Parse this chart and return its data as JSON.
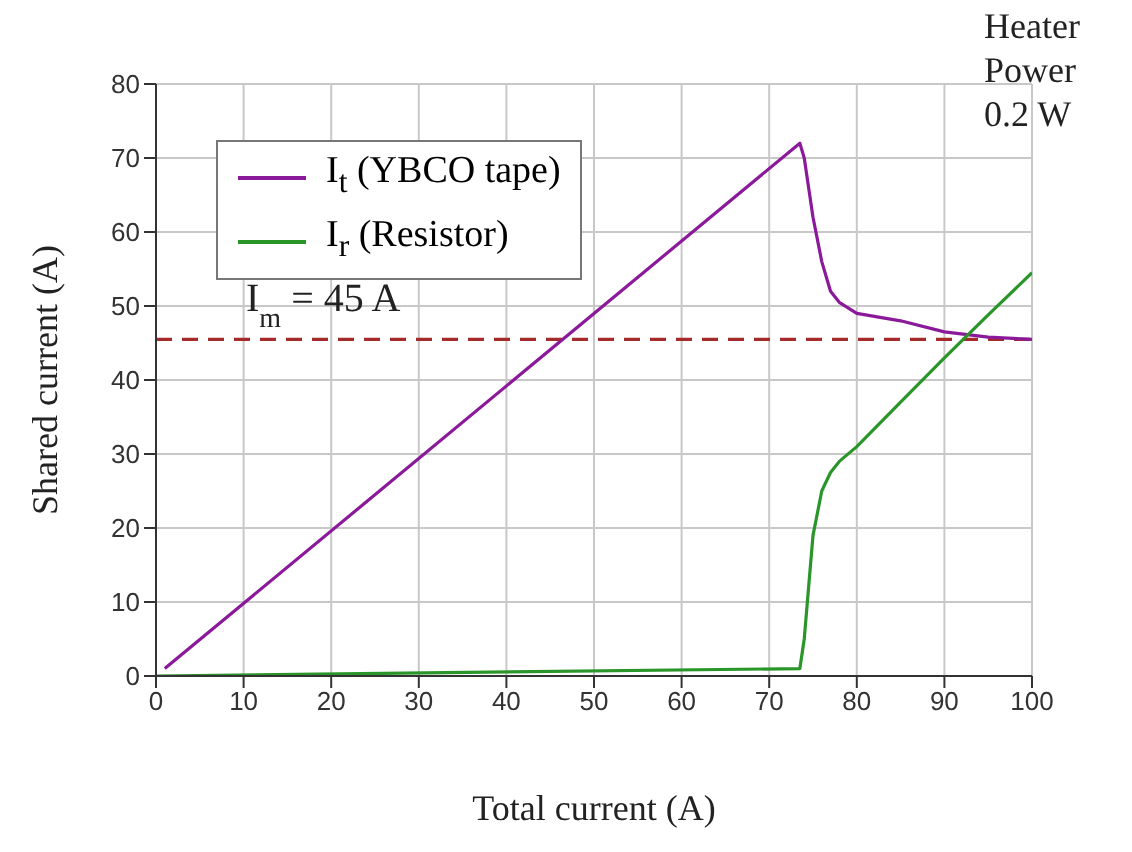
{
  "chart_data": {
    "type": "line",
    "xlabel": "Total current (A)",
    "ylabel": "Shared current (A)",
    "xlim": [
      0,
      100
    ],
    "xticks": [
      0,
      10,
      20,
      30,
      40,
      50,
      60,
      70,
      80,
      90,
      100
    ],
    "ylim": [
      0,
      80
    ],
    "yticks": [
      0,
      10,
      20,
      30,
      40,
      50,
      60,
      70,
      80
    ],
    "grid": true,
    "legend": "top left",
    "marker": "none",
    "line_style": "solid",
    "series": [
      {
        "name": "I$_{t}$ (YBCO tape)",
        "color": "#8b1a9a",
        "x": [
          1,
          73.5,
          74,
          75,
          76,
          77,
          78,
          80,
          85,
          90,
          95,
          100
        ],
        "values": [
          1,
          72,
          70,
          62,
          56,
          52,
          50.5,
          49,
          48,
          46.5,
          45.8,
          45.5
        ]
      },
      {
        "name": "I$_{r}$ (Resistor)",
        "color": "#2a962a",
        "x": [
          0,
          73.5,
          74,
          74.5,
          75,
          75.5,
          76,
          77,
          78,
          80,
          85,
          90,
          95,
          100
        ],
        "values": [
          0,
          1,
          5,
          12,
          19,
          22,
          25,
          27.5,
          29,
          31,
          37,
          43,
          48.8,
          54.5
        ]
      }
    ],
    "ref_lines": [
      {
        "axis": "y",
        "value": 45.5,
        "label": "I$_{m}$ = 45 A",
        "color": "#a52a2a",
        "line_style": "dashed"
      }
    ],
    "annotations": [
      "Heater Power 0.2 W"
    ]
  }
}
